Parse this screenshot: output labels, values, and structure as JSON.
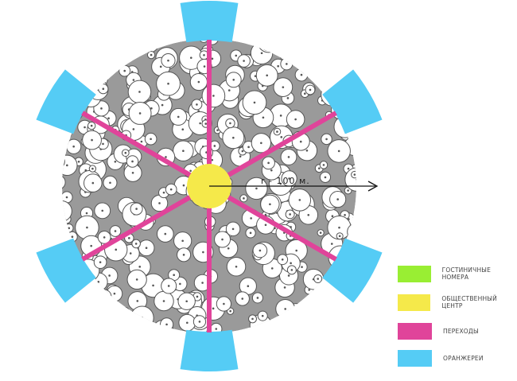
{
  "radius_label": "r - 100 м.",
  "colors": {
    "hotel_rooms": "#99ee33",
    "public_center": "#f5e94a",
    "passages": "#e0449a",
    "greenhouses": "#55ccf5",
    "background_fill": "#9a9a9a"
  },
  "legend": [
    {
      "label": "ГОСТИНИЧНЫЕ НОМЕРА",
      "color": "#99ee33"
    },
    {
      "label": "ОБЩЕСТВЕННЫЙ ЦЕНТР",
      "color": "#f5e94a"
    },
    {
      "label": "ПЕРЕХОДЫ",
      "color": "#e0449a"
    },
    {
      "label": "ОРАНЖЕРЕИ",
      "color": "#55ccf5"
    }
  ]
}
